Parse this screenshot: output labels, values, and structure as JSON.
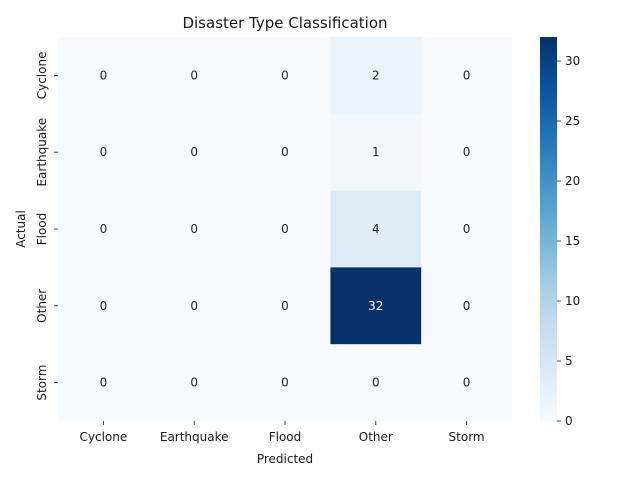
{
  "chart_data": {
    "type": "heatmap",
    "title": "Disaster Type Classification",
    "xlabel": "Predicted",
    "ylabel": "Actual",
    "x_categories": [
      "Cyclone",
      "Earthquake",
      "Flood",
      "Other",
      "Storm"
    ],
    "y_categories": [
      "Cyclone",
      "Earthquake",
      "Flood",
      "Other",
      "Storm"
    ],
    "values": [
      [
        0,
        0,
        0,
        2,
        0
      ],
      [
        0,
        0,
        0,
        1,
        0
      ],
      [
        0,
        0,
        0,
        4,
        0
      ],
      [
        0,
        0,
        0,
        32,
        0
      ],
      [
        0,
        0,
        0,
        0,
        0
      ]
    ],
    "colormap": "Blues",
    "vmin": 0,
    "vmax": 32,
    "colorbar_ticks": [
      0,
      5,
      10,
      15,
      20,
      25,
      30
    ],
    "grid": false,
    "colors": {
      "low": "#f7fbff",
      "high": "#08306b"
    }
  }
}
